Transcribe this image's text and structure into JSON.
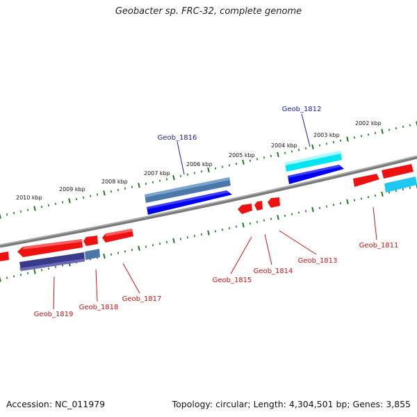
{
  "title": "Geobacter sp. FRC-32, complete genome",
  "footer": {
    "accession": "Accession: NC_011979",
    "info": "Topology: circular; Length: 4,304,501 bp; Genes: 3,855"
  },
  "kbp_labels": [
    "2002 kbp",
    "2003 kbp",
    "2004 kbp",
    "2005 kbp",
    "2006 kbp",
    "2007 kbp",
    "2008 kbp",
    "2009 kbp",
    "2010 kbp"
  ],
  "gene_labels": {
    "g1812": "Geob_1812",
    "g1816": "Geob_1816",
    "g1811": "Geob_1811",
    "g1813": "Geob_1813",
    "g1814": "Geob_1814",
    "g1815": "Geob_1815",
    "g1817": "Geob_1817",
    "g1818": "Geob_1818",
    "g1819": "Geob_1819"
  },
  "colors": {
    "backbone": "#7a7a7a",
    "tick": "#1a7a1a",
    "red": "#ee1111",
    "blue": "#0000ee",
    "cyan": "#00e5f0",
    "steel": "#4a78a8",
    "navy": "#3a3a8a",
    "label_blue": "#1a1aaa",
    "label_red": "#cc1111"
  }
}
